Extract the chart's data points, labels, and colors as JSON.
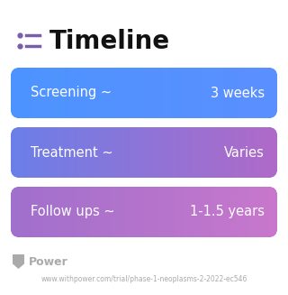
{
  "title": "Timeline",
  "title_icon_color": "#7B5EA7",
  "title_fontsize": 20,
  "title_fontweight": "bold",
  "background_color": "#ffffff",
  "rows": [
    {
      "label": "Screening ~",
      "value": "3 weeks",
      "gradient_left": "#4D94FF",
      "gradient_right": "#5B8FFF"
    },
    {
      "label": "Treatment ~",
      "value": "Varies",
      "gradient_left": "#6B7FE8",
      "gradient_right": "#B06AC8"
    },
    {
      "label": "Follow ups ~",
      "value": "1-1.5 years",
      "gradient_left": "#A070CC",
      "gradient_right": "#C878CC"
    }
  ],
  "row_text_color": "#ffffff",
  "row_label_fontsize": 10.5,
  "row_value_fontsize": 10.5,
  "footer_logo_text": "Power",
  "footer_url": "www.withpower.com/trial/phase-1-neoplasms-2-2022-ec546",
  "footer_color": "#aaaaaa",
  "footer_fontsize": 5.5
}
